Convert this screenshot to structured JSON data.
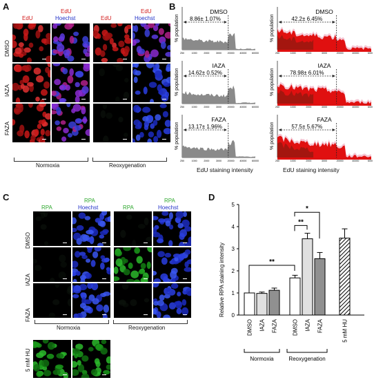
{
  "panels": {
    "A": {
      "letter": "A",
      "col_headers": [
        {
          "text": "EdU",
          "color": "#d32020"
        },
        {
          "line1": "EdU",
          "line2": "Hoechst",
          "color1": "#d32020",
          "color2": "#2030c8"
        },
        {
          "text": "EdU",
          "color": "#d32020"
        },
        {
          "line1": "EdU",
          "line2": "Hoechst",
          "color1": "#d32020",
          "color2": "#2030c8"
        }
      ],
      "rows": [
        "DMSO",
        "IAZA",
        "FAZA"
      ],
      "group_labels": [
        "Normoxia",
        "Reoxygenation"
      ]
    },
    "B": {
      "letter": "B",
      "ylabel": "% population",
      "xlabel": "EdU staining intensity",
      "left_titles": [
        "DMSO",
        "IAZA",
        "FAZA"
      ],
      "left_values": [
        "8.86± 1.07%",
        "14.62± 0.52%",
        "13.17± 1.96%"
      ],
      "right_titles": [
        "DMSO",
        "IAZA",
        "FAZA"
      ],
      "right_values": [
        "42.2± 6.45%",
        "78.98± 6.01%",
        "57.5± 5.67%"
      ],
      "left_ticks": [
        "250",
        "1000",
        "2000",
        "3000",
        "20000",
        "40000",
        "60000"
      ],
      "right_ticks": [
        "250",
        "1000",
        "2000",
        "3000",
        "20000",
        "40000",
        "60000"
      ]
    },
    "C": {
      "letter": "C",
      "col_headers": [
        {
          "text": "RPA",
          "color": "#2fa82f"
        },
        {
          "line1": "RPA",
          "line2": "Hoechst",
          "color1": "#2fa82f",
          "color2": "#2030c8"
        },
        {
          "text": "RPA",
          "color": "#2fa82f"
        },
        {
          "line1": "RPA",
          "line2": "Hoechst",
          "color1": "#2fa82f",
          "color2": "#2030c8"
        }
      ],
      "rows": [
        "DMSO",
        "IAZA",
        "FAZA"
      ],
      "group_labels": [
        "Normoxia",
        "Reoxygenation"
      ],
      "extra_row": "5 mM HU"
    },
    "D": {
      "letter": "D",
      "chart_data": {
        "type": "bar",
        "ylabel": "Relative RPA staining intensity",
        "ylim": [
          0,
          5
        ],
        "yticks": [
          "0",
          "1",
          "2",
          "3",
          "4",
          "5"
        ],
        "categories": [
          "DMSO",
          "IAZA",
          "FAZA",
          "DMSO",
          "IAZA",
          "FAZA",
          "5 mM HU"
        ],
        "values": [
          1.0,
          0.98,
          1.12,
          1.68,
          3.45,
          2.55,
          3.48
        ],
        "errors": [
          0.0,
          0.06,
          0.1,
          0.12,
          0.25,
          0.28,
          0.42
        ],
        "fills": [
          "#ffffff",
          "#e0e0e0",
          "#909090",
          "#ffffff",
          "#e0e0e0",
          "#909090",
          "hatch"
        ],
        "groups": [
          "Normoxia",
          "Reoxygenation"
        ],
        "significance": [
          "**",
          "**",
          "*"
        ]
      }
    }
  }
}
